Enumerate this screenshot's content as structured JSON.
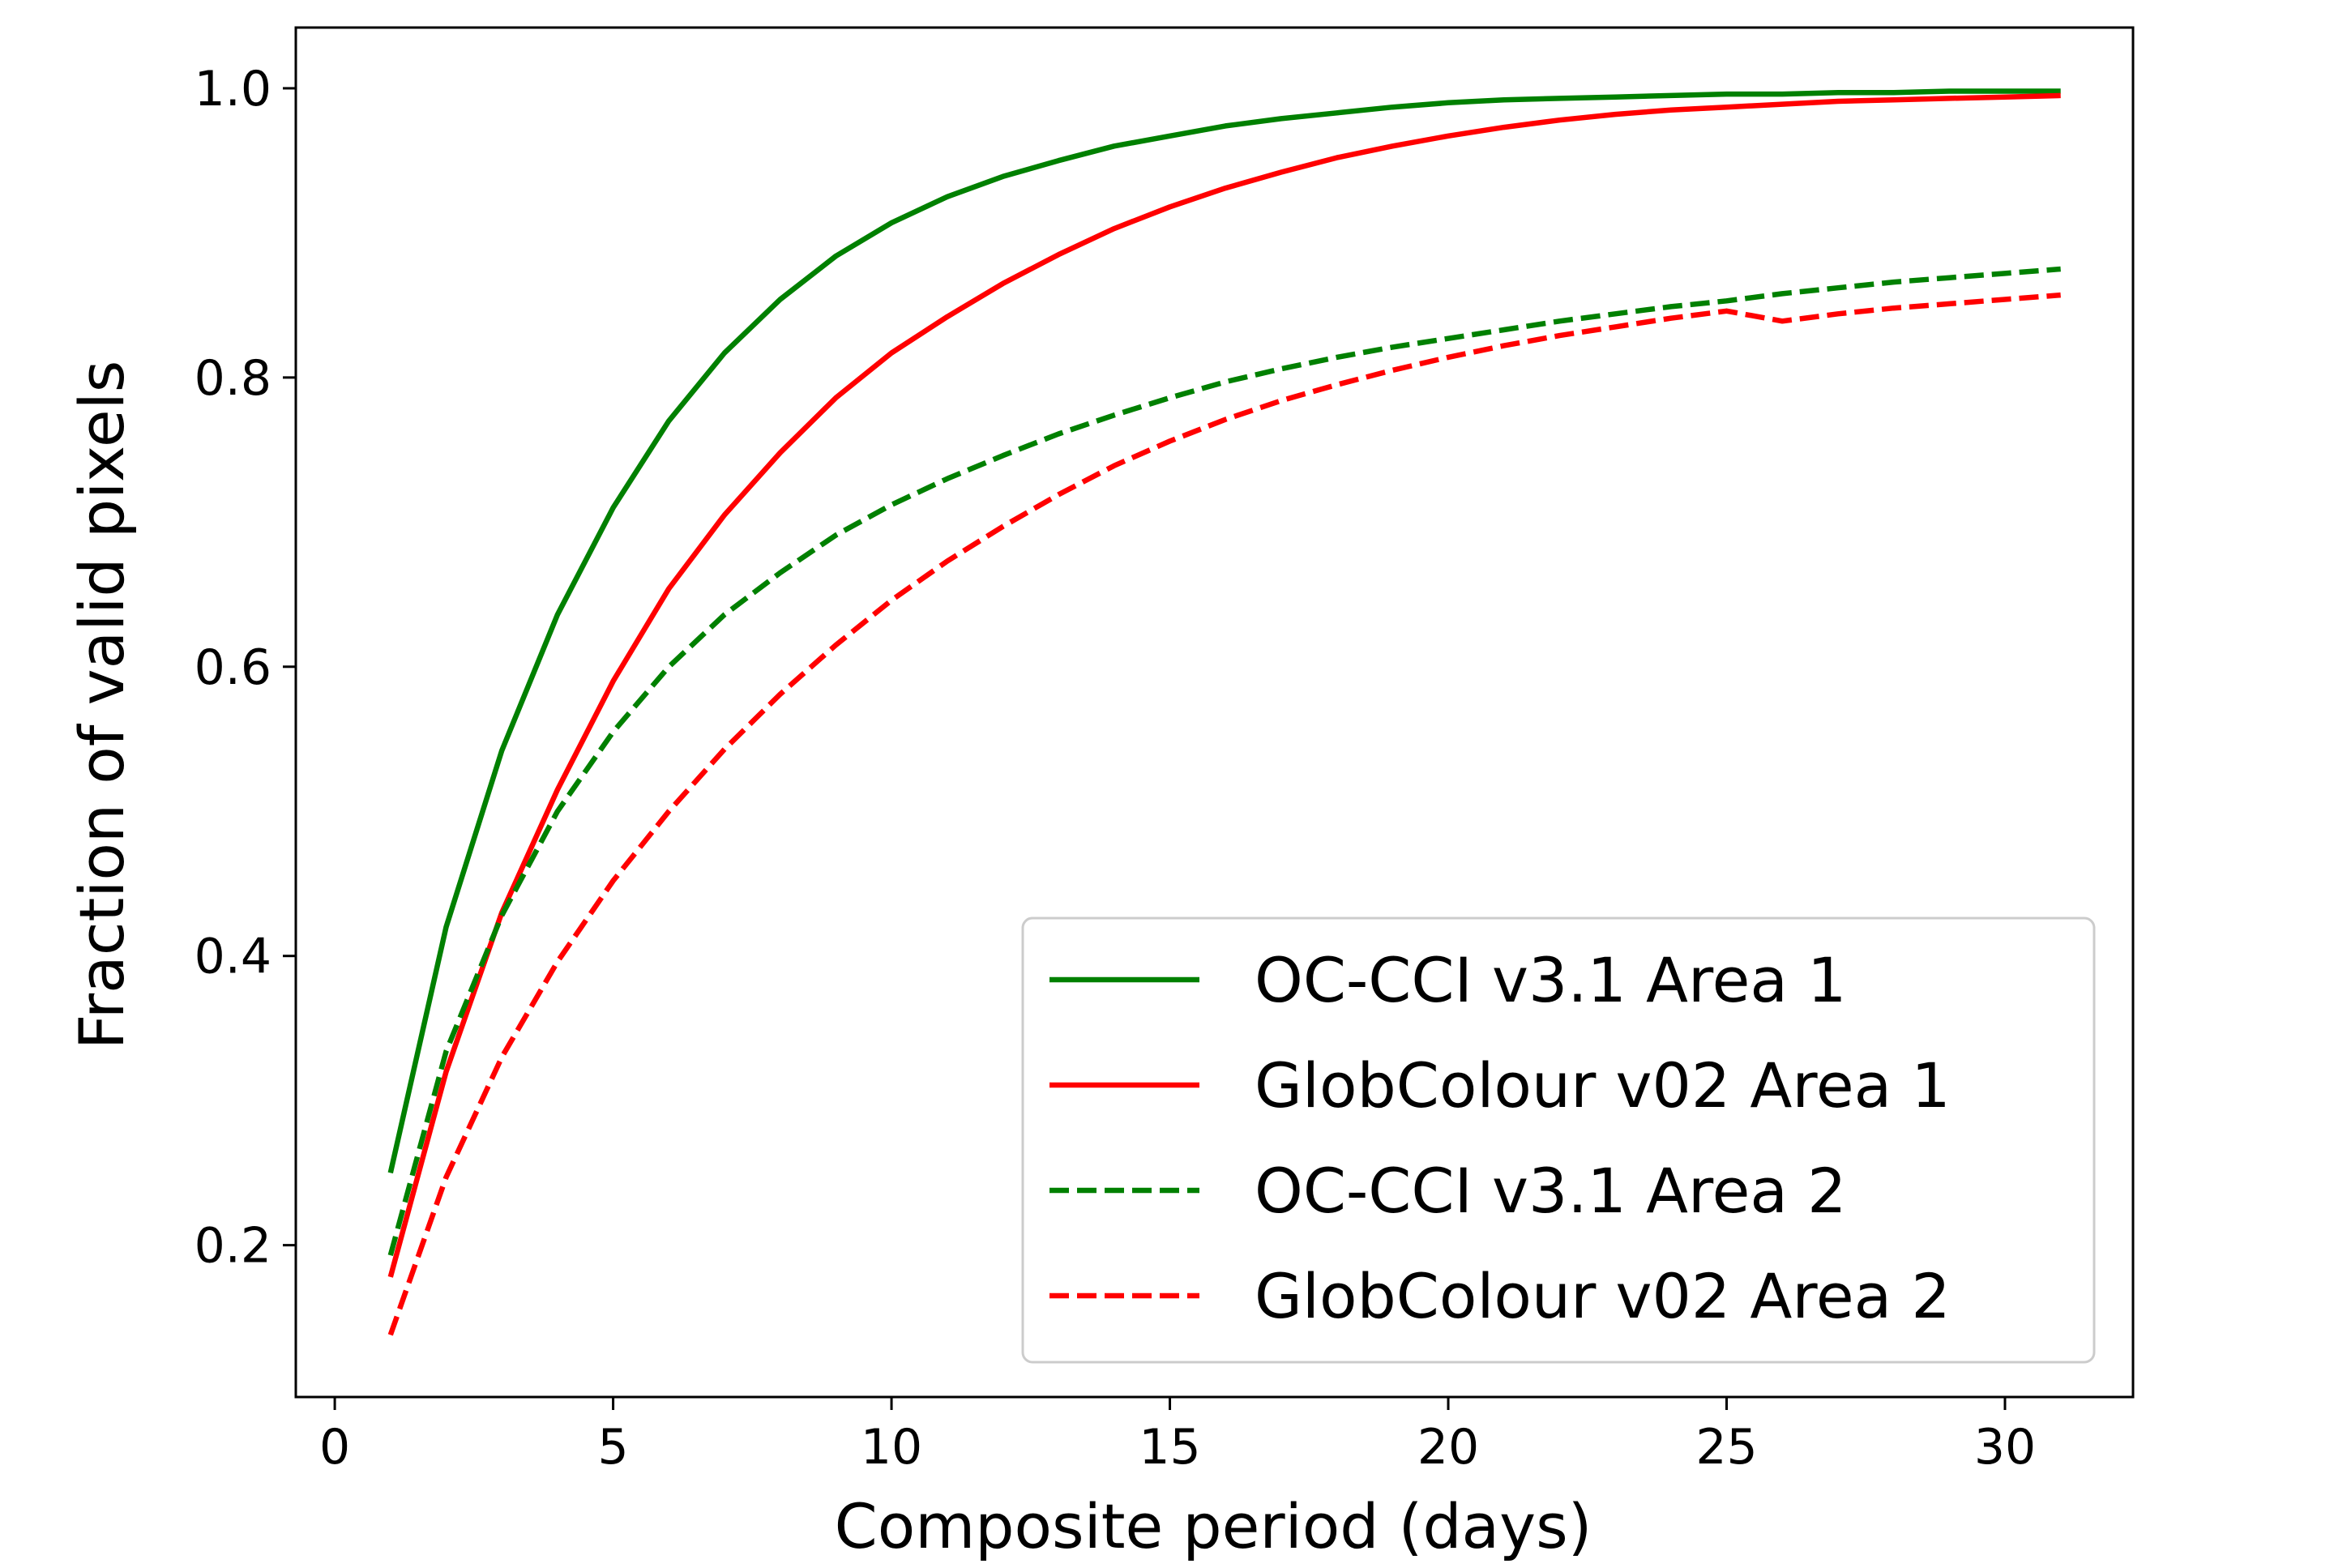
{
  "chart_data": {
    "type": "line",
    "title": "",
    "xlabel": "Composite period (days)",
    "ylabel": "Fraction of valid pixels",
    "xlim": [
      -0.7,
      32.3
    ],
    "ylim": [
      0.095,
      1.042
    ],
    "xticks": [
      0,
      5,
      10,
      15,
      20,
      25,
      30
    ],
    "yticks": [
      0.2,
      0.4,
      0.6,
      0.8,
      1.0
    ],
    "xtick_labels": [
      "0",
      "5",
      "10",
      "15",
      "20",
      "25",
      "30"
    ],
    "ytick_labels": [
      "0.2",
      "0.4",
      "0.6",
      "0.8",
      "1.0"
    ],
    "grid": false,
    "legend_position": "lower-right",
    "x": [
      1,
      2,
      3,
      4,
      5,
      6,
      7,
      8,
      9,
      10,
      11,
      12,
      13,
      14,
      15,
      16,
      17,
      18,
      19,
      20,
      21,
      22,
      23,
      24,
      25,
      26,
      27,
      28,
      29,
      30,
      31
    ],
    "series": [
      {
        "name": "OC-CCI v3.1 Area 1",
        "color": "#008000",
        "linestyle": "solid",
        "values": [
          0.25,
          0.42,
          0.542,
          0.636,
          0.71,
          0.77,
          0.817,
          0.854,
          0.884,
          0.907,
          0.925,
          0.939,
          0.95,
          0.96,
          0.967,
          0.974,
          0.979,
          0.983,
          0.987,
          0.99,
          0.992,
          0.993,
          0.994,
          0.995,
          0.996,
          0.996,
          0.997,
          0.997,
          0.998,
          0.998,
          0.998
        ]
      },
      {
        "name": "GlobColour v02 Area 1",
        "color": "#ff0000",
        "linestyle": "solid",
        "values": [
          0.178,
          0.32,
          0.43,
          0.515,
          0.59,
          0.654,
          0.705,
          0.748,
          0.786,
          0.817,
          0.842,
          0.865,
          0.885,
          0.903,
          0.918,
          0.931,
          0.942,
          0.952,
          0.96,
          0.967,
          0.973,
          0.978,
          0.982,
          0.985,
          0.987,
          0.989,
          0.991,
          0.992,
          0.993,
          0.994,
          0.995
        ]
      },
      {
        "name": "OC-CCI v3.1 Area 2",
        "color": "#008000",
        "linestyle": "dashed",
        "values": [
          0.193,
          0.334,
          0.428,
          0.5,
          0.555,
          0.6,
          0.636,
          0.665,
          0.691,
          0.712,
          0.73,
          0.746,
          0.761,
          0.774,
          0.786,
          0.797,
          0.806,
          0.814,
          0.821,
          0.827,
          0.833,
          0.839,
          0.844,
          0.849,
          0.853,
          0.858,
          0.862,
          0.866,
          0.869,
          0.872,
          0.875
        ]
      },
      {
        "name": "GlobColour v02 Area 2",
        "color": "#ff0000",
        "linestyle": "dashed",
        "values": [
          0.138,
          0.247,
          0.33,
          0.396,
          0.452,
          0.5,
          0.543,
          0.581,
          0.615,
          0.646,
          0.673,
          0.697,
          0.719,
          0.739,
          0.756,
          0.771,
          0.784,
          0.795,
          0.805,
          0.814,
          0.822,
          0.829,
          0.835,
          0.841,
          0.846,
          0.839,
          0.844,
          0.848,
          0.851,
          0.854,
          0.857
        ]
      }
    ]
  }
}
